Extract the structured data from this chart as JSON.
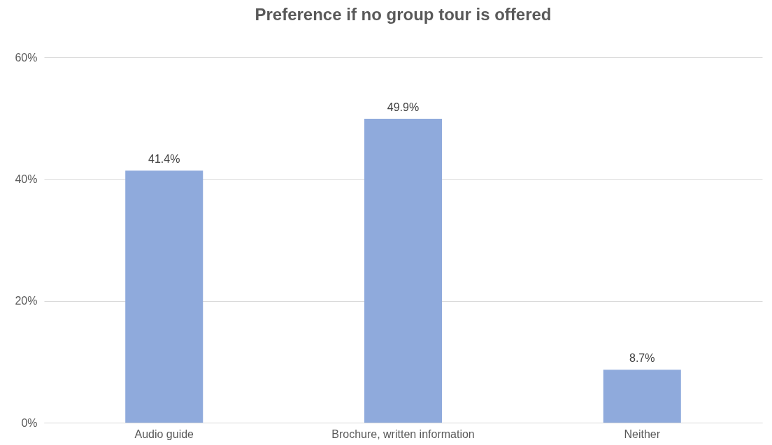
{
  "chart_data": {
    "type": "bar",
    "title": "Preference if no group tour is offered",
    "categories": [
      "Audio guide",
      "Brochure, written information",
      "Neither"
    ],
    "values": [
      41.4,
      49.9,
      8.7
    ],
    "value_labels": [
      "41.4%",
      "49.9%",
      "8.7%"
    ],
    "color": "#8faadc",
    "ylim": [
      0,
      60
    ],
    "yticks": [
      {
        "value": 0,
        "label": "0%"
      },
      {
        "value": 20,
        "label": "20%"
      },
      {
        "value": 40,
        "label": "40%"
      },
      {
        "value": 60,
        "label": "60%"
      }
    ],
    "grid": "y"
  }
}
